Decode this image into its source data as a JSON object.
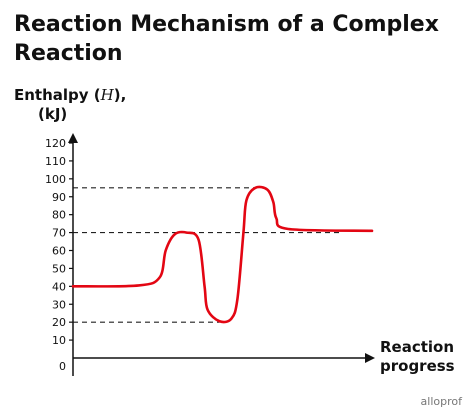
{
  "chart_data": {
    "type": "line",
    "title": "Reaction Mechanism of a Complex Reaction",
    "xlabel_lines": [
      "Reaction",
      "progress"
    ],
    "ylabel_main": "Enthalpy (",
    "ylabel_var": "H",
    "ylabel_close": "),",
    "ylabel_unit": "(kJ)",
    "ylim": [
      0,
      120
    ],
    "yticks": [
      0,
      10,
      20,
      30,
      40,
      50,
      60,
      70,
      80,
      90,
      100,
      110,
      120
    ],
    "reference_lines": [
      95,
      70,
      20
    ],
    "series": [
      {
        "color": "#e30613",
        "points": [
          [
            0.0,
            40
          ],
          [
            0.22,
            40.5
          ],
          [
            0.29,
            45
          ],
          [
            0.31,
            60
          ],
          [
            0.34,
            69
          ],
          [
            0.38,
            70
          ],
          [
            0.42,
            66
          ],
          [
            0.44,
            40
          ],
          [
            0.45,
            27
          ],
          [
            0.49,
            20.5
          ],
          [
            0.53,
            22
          ],
          [
            0.55,
            33
          ],
          [
            0.57,
            70
          ],
          [
            0.58,
            88
          ],
          [
            0.61,
            95
          ],
          [
            0.65,
            94
          ],
          [
            0.67,
            87
          ],
          [
            0.68,
            78
          ],
          [
            0.72,
            72
          ],
          [
            1.0,
            71
          ]
        ]
      }
    ],
    "grid": false
  },
  "brand": "alloprof",
  "colors": {
    "curve": "#e30613",
    "axis": "#111111",
    "reference": "#222222"
  }
}
